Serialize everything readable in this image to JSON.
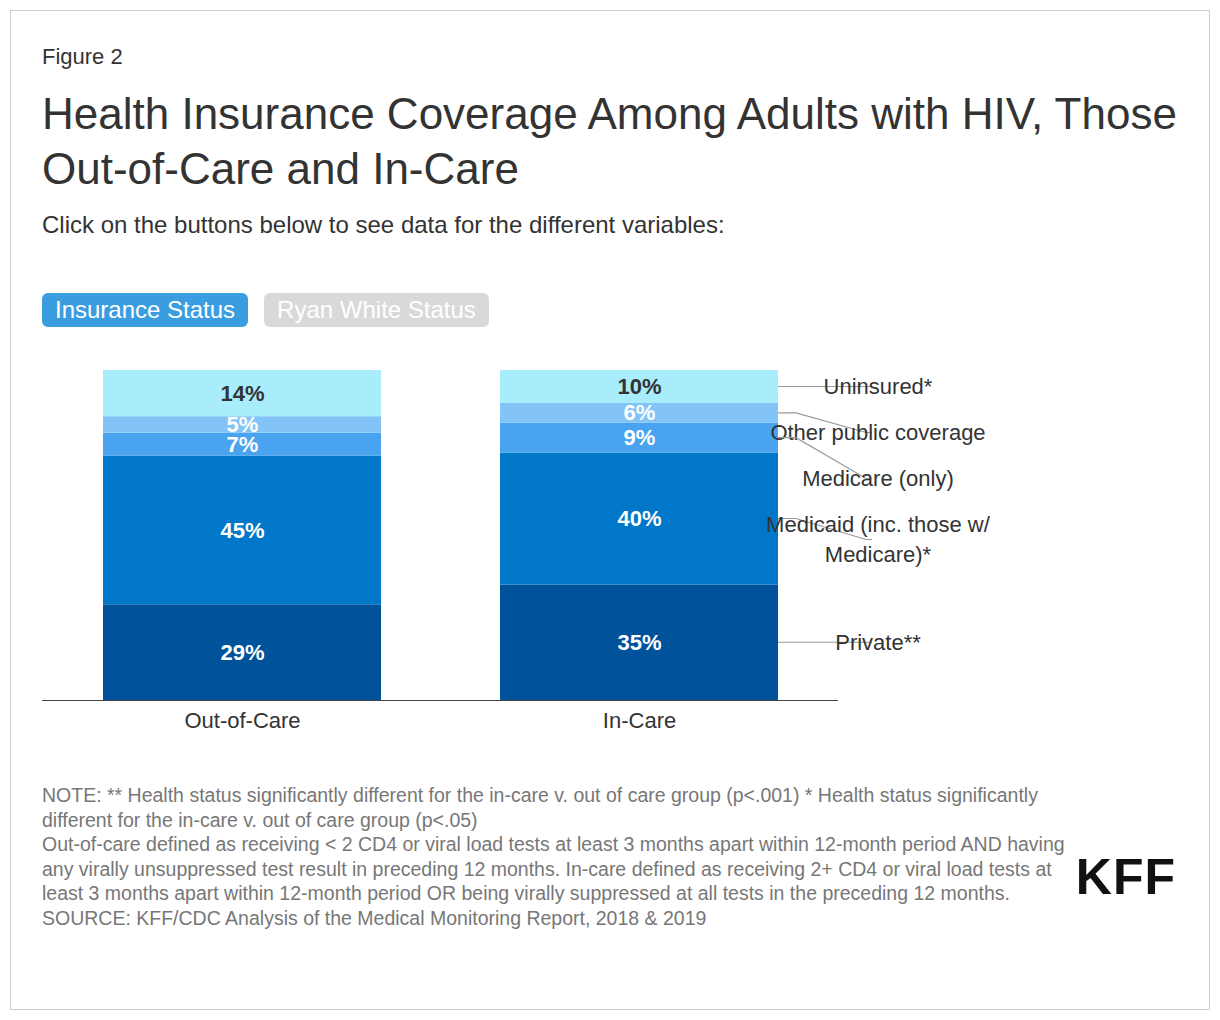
{
  "chart_data": {
    "type": "bar",
    "figure_label": "Figure 2",
    "title": "Health Insurance Coverage Among Adults with HIV, Those Out-of-Care and In-Care",
    "subtitle": "Click on the buttons below to see data for the different variables:",
    "buttons": [
      "Insurance Status",
      "Ryan White Status"
    ],
    "categories": [
      "Out-of-Care",
      "In-Care"
    ],
    "stacked": true,
    "data_labels": true,
    "tick_labels": "x",
    "grid": false,
    "ylim": [
      0,
      100
    ],
    "yticks": [],
    "series": [
      {
        "name": "Private**",
        "color": "#00529b",
        "values": [
          29,
          35
        ],
        "value_labels": [
          "29%",
          "35%"
        ]
      },
      {
        "name": "Medicaid (inc. those w/ Medicare)*",
        "color": "#0077c8",
        "values": [
          45,
          40
        ],
        "value_labels": [
          "45%",
          "40%"
        ]
      },
      {
        "name": "Medicare (only)",
        "color": "#4aa3ef",
        "values": [
          7,
          9
        ],
        "value_labels": [
          "7%",
          "9%"
        ]
      },
      {
        "name": "Other public coverage",
        "color": "#82c4f8",
        "values": [
          5,
          6
        ],
        "value_labels": [
          "5%",
          "6%"
        ]
      },
      {
        "name": "Uninsured*",
        "color": "#a9ecfb",
        "values": [
          14,
          10
        ],
        "value_labels": [
          "14%",
          "10%"
        ]
      }
    ],
    "notes": [
      "NOTE: ** Health status significantly different for the in-care v. out of care group (p<.001) * Health status significantly different for the in-care v. out of care group (p<.05)",
      "Out-of-care defined as receiving < 2 CD4 or viral load tests at least 3 months apart within 12-month period AND having any virally unsuppressed test result in preceding 12 months. In-care defined as receiving 2+ CD4 or viral load tests at least 3 months apart within 12-month period OR being virally suppressed at all tests in the preceding 12 months.",
      "SOURCE: KFF/CDC Analysis of the Medical Monitoring Report, 2018 & 2019"
    ],
    "logo": "KFF"
  }
}
